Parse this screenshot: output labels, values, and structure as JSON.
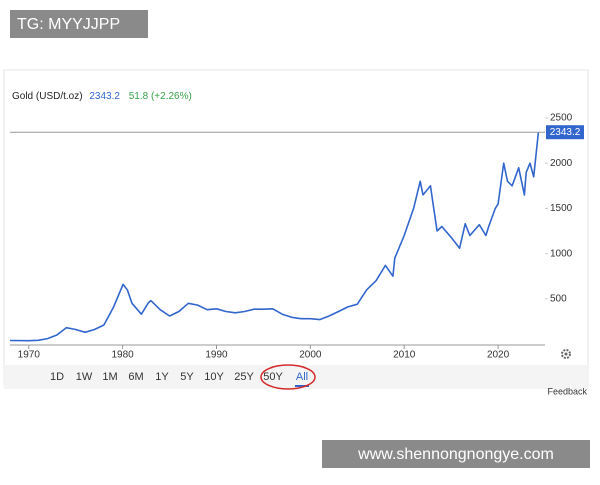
{
  "watermark_top": "TG: MYYJJPP",
  "watermark_bottom": "www.shennongnongye.com",
  "feedback": "Feedback",
  "ranges": [
    "1D",
    "1W",
    "1M",
    "6M",
    "1Y",
    "5Y",
    "10Y",
    "25Y",
    "50Y",
    "All"
  ],
  "selected_range": "All",
  "chart_data": {
    "type": "line",
    "title": "Gold (USD/t.oz)",
    "price": 2343.2,
    "change": "51.8 (+2.26%)",
    "x": [
      1968,
      1970,
      1971,
      1972,
      1973,
      1974,
      1975,
      1976,
      1977,
      1978,
      1979,
      1980.05,
      1980.5,
      1981,
      1982,
      1982.7,
      1983,
      1984,
      1985,
      1986,
      1987,
      1988,
      1989,
      1990,
      1991,
      1992,
      1993,
      1994,
      1995,
      1996,
      1997,
      1998,
      1999,
      2000,
      2001,
      2002,
      2003,
      2004,
      2005,
      2006,
      2007,
      2008,
      2008.8,
      2009,
      2010,
      2011,
      2011.7,
      2012,
      2012.8,
      2013,
      2013.5,
      2014,
      2015,
      2015.9,
      2016.5,
      2017,
      2018,
      2018.7,
      2019,
      2019.7,
      2020,
      2020.6,
      2021,
      2021.5,
      2022.2,
      2022.8,
      2023,
      2023.4,
      2023.8,
      2024,
      2024.3
    ],
    "series": [
      {
        "name": "Gold",
        "color": "#3366cc",
        "values": [
          39,
          36,
          41,
          60,
          100,
          180,
          160,
          130,
          160,
          210,
          400,
          660,
          600,
          450,
          330,
          450,
          480,
          380,
          310,
          360,
          450,
          430,
          380,
          390,
          360,
          345,
          360,
          385,
          385,
          390,
          330,
          295,
          280,
          280,
          270,
          310,
          360,
          410,
          440,
          600,
          700,
          870,
          750,
          950,
          1200,
          1500,
          1800,
          1650,
          1750,
          1600,
          1250,
          1300,
          1180,
          1060,
          1330,
          1200,
          1320,
          1200,
          1300,
          1500,
          1550,
          2000,
          1800,
          1750,
          1950,
          1650,
          1900,
          2000,
          1850,
          2050,
          2343.2
        ]
      }
    ],
    "xlim": [
      1968,
      2025
    ],
    "ylim": [
      0,
      2600
    ],
    "xticks": [
      1970,
      1980,
      1990,
      2000,
      2010,
      2020
    ],
    "yticks": [
      500,
      1000,
      1500,
      2000,
      2500
    ]
  }
}
